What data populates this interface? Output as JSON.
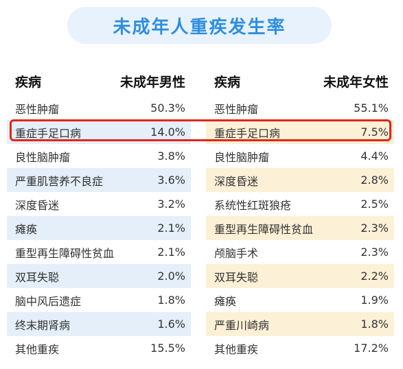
{
  "title": "未成年人重疾发生率",
  "male": {
    "header_disease": "疾病",
    "header_rate": "未成年男性",
    "rows": [
      {
        "name": "恶性肿瘤",
        "rate": "50.3%"
      },
      {
        "name": "重症手足口病",
        "rate": "14.0%"
      },
      {
        "name": "良性脑肿瘤",
        "rate": "3.8%"
      },
      {
        "name": "严重肌营养不良症",
        "rate": "3.6%"
      },
      {
        "name": "深度昏迷",
        "rate": "3.2%"
      },
      {
        "name": "瘫痪",
        "rate": "2.1%"
      },
      {
        "name": "重型再生障碍性贫血",
        "rate": "2.1%"
      },
      {
        "name": "双耳失聪",
        "rate": "2.0%"
      },
      {
        "name": "脑中风后遗症",
        "rate": "1.8%"
      },
      {
        "name": "终末期肾病",
        "rate": "1.6%"
      },
      {
        "name": "其他重疾",
        "rate": "15.5%"
      }
    ]
  },
  "female": {
    "header_disease": "疾病",
    "header_rate": "未成年女性",
    "rows": [
      {
        "name": "恶性肿瘤",
        "rate": "55.1%"
      },
      {
        "name": "重症手足口病",
        "rate": "7.5%"
      },
      {
        "name": "良性脑肿瘤",
        "rate": "4.4%"
      },
      {
        "name": "深度昏迷",
        "rate": "2.8%"
      },
      {
        "name": "系统性红斑狼疮",
        "rate": "2.5%"
      },
      {
        "name": "重型再生障碍性贫血",
        "rate": "2.3%"
      },
      {
        "name": "颅脑手术",
        "rate": "2.3%"
      },
      {
        "name": "双耳失聪",
        "rate": "2.2%"
      },
      {
        "name": "瘫痪",
        "rate": "1.9%"
      },
      {
        "name": "严重川崎病",
        "rate": "1.8%"
      },
      {
        "name": "其他重疾",
        "rate": "17.2%"
      }
    ]
  },
  "colors": {
    "title_text": "#2f8fe0",
    "title_bg": "#e8f2fc",
    "male_shade": "#e4eff9",
    "female_shade": "#fcf0d6",
    "highlight_border": "#e5241b"
  }
}
